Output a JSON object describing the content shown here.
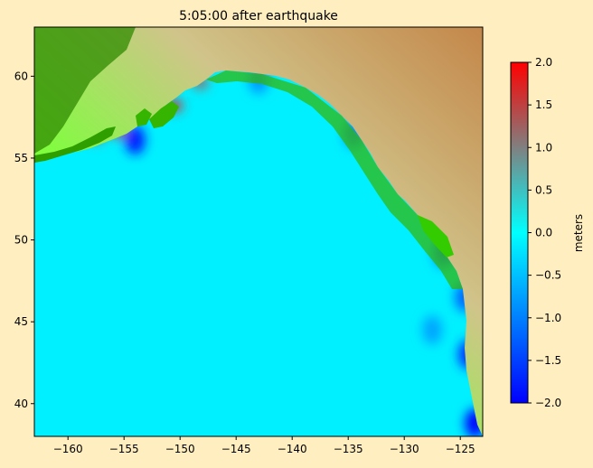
{
  "chart_data": {
    "type": "heatmap",
    "title": "5:05:00 after earthquake",
    "xlabel": "",
    "ylabel": "",
    "xlim": [
      -163,
      -123
    ],
    "ylim": [
      38,
      63
    ],
    "x_ticks": [
      -160,
      -155,
      -150,
      -145,
      -140,
      -135,
      -130,
      -125
    ],
    "y_ticks": [
      40,
      45,
      50,
      55,
      60
    ],
    "x_tick_labels": [
      "−160",
      "−155",
      "−150",
      "−145",
      "−140",
      "−135",
      "−130",
      "−125"
    ],
    "y_tick_labels": [
      "40",
      "45",
      "50",
      "55",
      "60"
    ],
    "colorbar": {
      "label": "meters",
      "range": [
        -2.0,
        2.0
      ],
      "ticks": [
        2.0,
        1.5,
        1.0,
        0.5,
        0.0,
        -0.5,
        -1.0,
        -1.5,
        -2.0
      ],
      "tick_labels": [
        "2.0",
        "1.5",
        "1.0",
        "0.5",
        "0.0",
        "−0.5",
        "−1.0",
        "−1.5",
        "−2.0"
      ],
      "colors": [
        "#0000ff",
        "#0080ff",
        "#00ffff",
        "#808080",
        "#ff0000"
      ]
    },
    "ocean_base_value": 0.0,
    "land_colors": [
      "#2e7d00",
      "#33cc00",
      "#7dff3c",
      "#c8e8a0",
      "#d9b680",
      "#c4874a"
    ],
    "features": [
      {
        "kind": "positive",
        "lon": -150.5,
        "lat": 58.2,
        "value": 1.6
      },
      {
        "kind": "positive",
        "lon": -152.5,
        "lat": 59.6,
        "value": 1.0
      },
      {
        "kind": "positive",
        "lon": -148.2,
        "lat": 59.6,
        "value": 1.2
      },
      {
        "kind": "positive",
        "lon": -155.5,
        "lat": 56.6,
        "value": 1.4
      },
      {
        "kind": "positive",
        "lon": -157.5,
        "lat": 56.3,
        "value": 1.1
      },
      {
        "kind": "negative",
        "lon": -154.0,
        "lat": 56.1,
        "value": -1.8
      },
      {
        "kind": "negative",
        "lon": -124.3,
        "lat": 43.0,
        "value": -1.6
      },
      {
        "kind": "negative",
        "lon": -124.6,
        "lat": 46.5,
        "value": -1.2
      },
      {
        "kind": "negative",
        "lon": -126.5,
        "lat": 49.2,
        "value": -1.0
      },
      {
        "kind": "negative",
        "lon": -134.5,
        "lat": 56.5,
        "value": -0.9
      },
      {
        "kind": "negative",
        "lon": -143.0,
        "lat": 59.8,
        "value": -0.8
      },
      {
        "kind": "negative",
        "lon": -123.7,
        "lat": 38.8,
        "value": -2.0
      },
      {
        "kind": "negative",
        "lon": -127.5,
        "lat": 44.5,
        "value": -0.7
      }
    ]
  }
}
